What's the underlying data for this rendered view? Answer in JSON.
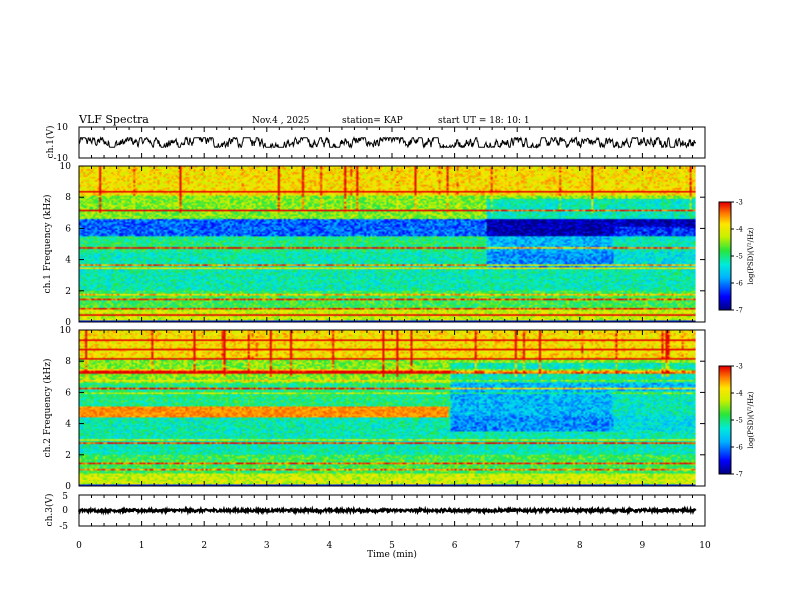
{
  "header": {
    "title": "VLF Spectra",
    "date": "Nov.4 , 2025",
    "station": "station= KAP",
    "start": "start UT = 18: 10: 1"
  },
  "chart_data": [
    {
      "type": "line",
      "name": "ch1-waveform",
      "ylabel": "ch.1(V)",
      "ylim": [
        -10,
        10
      ],
      "yticks": [
        "10",
        "-10"
      ],
      "xlim": [
        0,
        10
      ],
      "x_extent": [
        0,
        9.85
      ],
      "amplitude_range": [
        -3,
        3
      ],
      "color": "#000000"
    },
    {
      "type": "heatmap",
      "name": "ch1-spectrogram",
      "ylabel": "ch.1 Frequency (kHz)",
      "ylim": [
        0,
        10
      ],
      "yticks": [
        "0",
        "2",
        "4",
        "6",
        "8",
        "10"
      ],
      "xlim": [
        0,
        10
      ],
      "x_extent": [
        0,
        9.85
      ],
      "colorbar": {
        "label": "log(PSD)(V²/Hz)",
        "range": [
          -7,
          -3
        ],
        "ticks": [
          "-3",
          "-4",
          "-5",
          "-6",
          "-7"
        ]
      }
    },
    {
      "type": "heatmap",
      "name": "ch2-spectrogram",
      "ylabel": "ch.2 Frequency (kHz)",
      "ylim": [
        0,
        10
      ],
      "yticks": [
        "0",
        "2",
        "4",
        "6",
        "8",
        "10"
      ],
      "xlim": [
        0,
        10
      ],
      "x_extent": [
        0,
        9.85
      ],
      "colorbar": {
        "label": "log(PSD)(V²/Hz)",
        "range": [
          -7,
          -3
        ],
        "ticks": [
          "-3",
          "-4",
          "-5",
          "-6",
          "-7"
        ]
      }
    },
    {
      "type": "line",
      "name": "ch3-waveform",
      "ylabel": "ch.3(V)",
      "ylim": [
        -5,
        5
      ],
      "yticks": [
        "5",
        "0",
        "-5"
      ],
      "xlim": [
        0,
        10
      ],
      "x_extent": [
        0,
        9.85
      ],
      "amplitude_range": [
        -0.45,
        0.45
      ],
      "color": "#000000"
    }
  ],
  "xaxis": {
    "label": "Time (min)",
    "ticks": [
      "0",
      "1",
      "2",
      "3",
      "4",
      "5",
      "6",
      "7",
      "8",
      "9",
      "10"
    ]
  }
}
